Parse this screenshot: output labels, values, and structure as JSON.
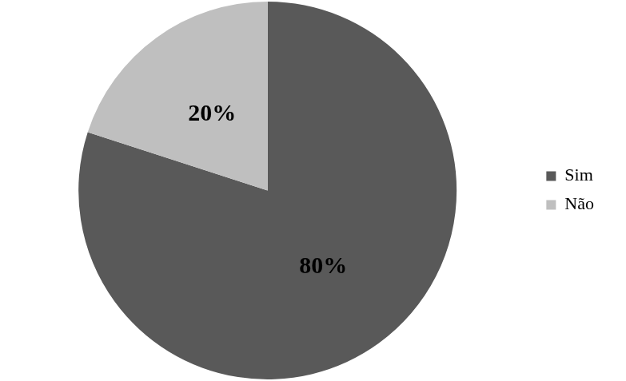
{
  "chart_data": {
    "type": "pie",
    "categories": [
      "Sim",
      "Não"
    ],
    "values": [
      80,
      20
    ],
    "value_labels": [
      "80%",
      "20%"
    ],
    "colors": [
      "#595959",
      "#bfbfbf"
    ],
    "data_labels": true,
    "legend": "right"
  }
}
